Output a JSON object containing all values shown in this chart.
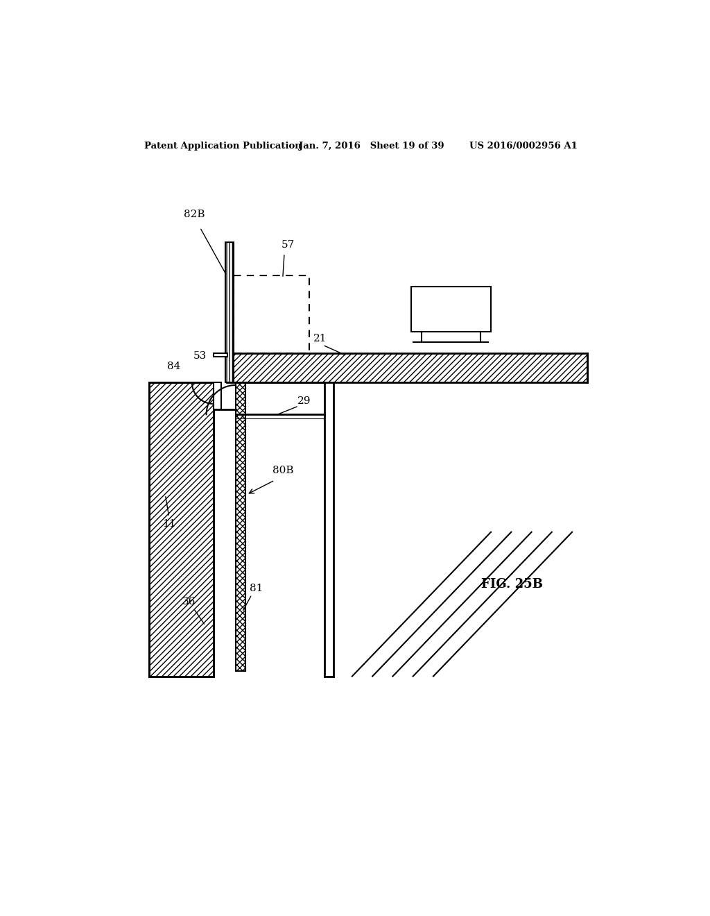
{
  "title_left": "Patent Application Publication",
  "title_center": "Jan. 7, 2016   Sheet 19 of 39",
  "title_right": "US 2016/0002956 A1",
  "fig_label": "FIG. 25B",
  "background_color": "#ffffff",
  "line_color": "#000000"
}
